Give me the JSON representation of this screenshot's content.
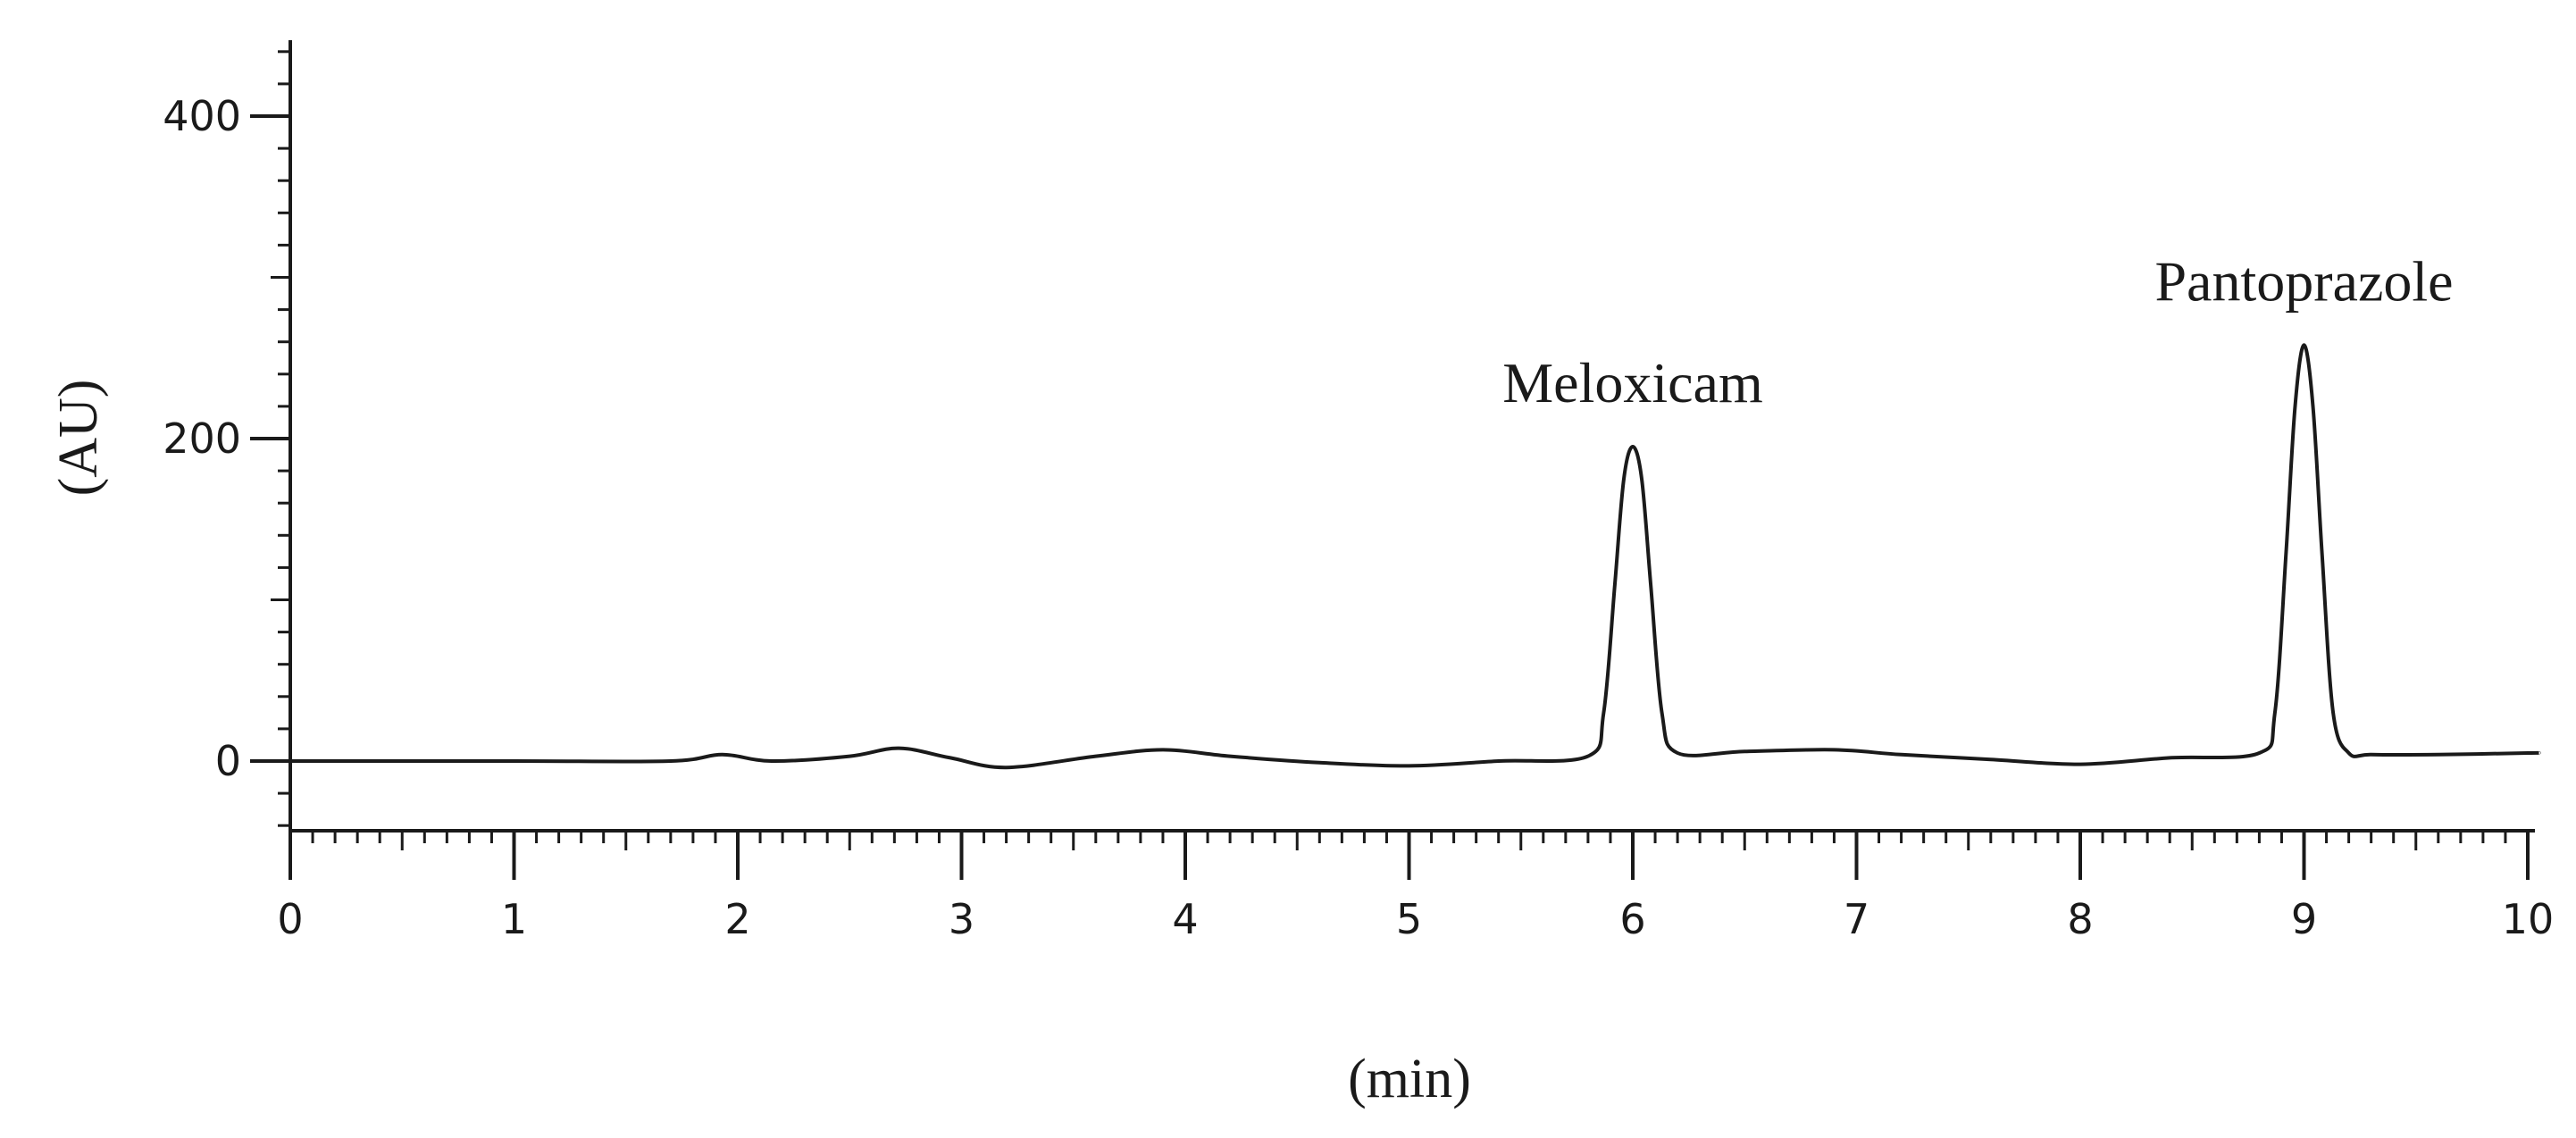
{
  "chart_data": {
    "type": "line",
    "title": "",
    "xlabel": "(min)",
    "ylabel": "(AU)",
    "xlim": [
      0,
      10
    ],
    "ylim": [
      -45,
      450
    ],
    "x_ticks": [
      0,
      1,
      2,
      3,
      4,
      5,
      6,
      7,
      8,
      9,
      10
    ],
    "x_tick_labels": [
      "0",
      "1",
      "2",
      "3",
      "4",
      "5",
      "6",
      "7",
      "8",
      "9",
      "10"
    ],
    "y_ticks": [
      0,
      200,
      400
    ],
    "y_tick_labels": [
      "0",
      "200",
      "400"
    ],
    "grid": false,
    "legend": "none",
    "series": [
      {
        "color": "#1a1a1a",
        "x": [
          0,
          1.0,
          1.7,
          1.93,
          2.15,
          2.5,
          2.72,
          2.95,
          3.2,
          3.6,
          3.9,
          4.2,
          4.6,
          5.0,
          5.4,
          5.8,
          5.87,
          5.92,
          5.96,
          6.0,
          6.04,
          6.08,
          6.13,
          6.2,
          6.5,
          6.9,
          7.2,
          7.6,
          8.0,
          8.4,
          8.8,
          8.87,
          8.92,
          8.96,
          9.0,
          9.04,
          9.08,
          9.13,
          9.2,
          9.3,
          9.6,
          10.0,
          10.05
        ],
        "y": [
          0,
          0,
          0,
          4,
          0,
          3,
          8,
          2,
          -4,
          3,
          7,
          3,
          -1,
          -3,
          0,
          3,
          30,
          110,
          175,
          195,
          175,
          110,
          30,
          5,
          6,
          7,
          4,
          1,
          -2,
          2,
          5,
          30,
          130,
          220,
          258,
          220,
          130,
          30,
          5,
          4,
          4,
          5,
          5
        ]
      }
    ],
    "annotations": [
      {
        "text": "Meloxicam",
        "x": 6.0,
        "y": 195
      },
      {
        "text": "Pantoprazole",
        "x": 9.0,
        "y": 258
      }
    ]
  }
}
